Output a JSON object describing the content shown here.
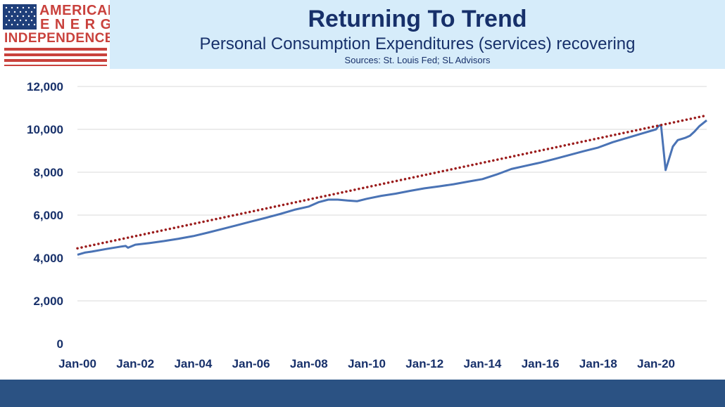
{
  "logo": {
    "line1": "AMERICAN",
    "line2": "ENERGY",
    "line3": "INDEPENDENCE",
    "flag_blue": "#1f3f7a",
    "flag_red": "#c9413c"
  },
  "header": {
    "title": "Returning To Trend",
    "subtitle": "Personal Consumption Expenditures (services) recovering",
    "sources": "Sources: St. Louis Fed; SL Advisors"
  },
  "colors": {
    "header_bg": "#d6ecfa",
    "title": "#17306a",
    "series": "#4a73b5",
    "trend": "#9b1c1c",
    "gridline": "#d9d9d9",
    "footer": "#2b5283"
  },
  "chart_data": {
    "type": "line",
    "title": "",
    "xlabel": "",
    "ylabel": "",
    "ylim": [
      0,
      12000
    ],
    "yticks": [
      0,
      2000,
      4000,
      6000,
      8000,
      10000,
      12000
    ],
    "ytick_labels": [
      "0",
      "2,000",
      "4,000",
      "6,000",
      "8,000",
      "10,000",
      "12,000"
    ],
    "xlim": [
      2000.0,
      2021.75
    ],
    "xticks": [
      2000,
      2002,
      2004,
      2006,
      2008,
      2010,
      2012,
      2014,
      2016,
      2018,
      2020
    ],
    "xtick_labels": [
      "Jan-00",
      "Jan-02",
      "Jan-04",
      "Jan-06",
      "Jan-08",
      "Jan-10",
      "Jan-12",
      "Jan-14",
      "Jan-16",
      "Jan-18",
      "Jan-20"
    ],
    "grid": "horizontal",
    "legend": "none",
    "series": [
      {
        "style": "solid",
        "x": [
          2000.0,
          2000.25,
          2000.5,
          2001.0,
          2001.5,
          2001.67,
          2001.75,
          2002.0,
          2002.5,
          2003.0,
          2003.5,
          2004.0,
          2004.5,
          2005.0,
          2005.5,
          2006.0,
          2006.5,
          2007.0,
          2007.5,
          2008.0,
          2008.33,
          2008.67,
          2009.0,
          2009.33,
          2009.67,
          2010.0,
          2010.5,
          2011.0,
          2011.5,
          2012.0,
          2012.5,
          2013.0,
          2013.5,
          2014.0,
          2014.5,
          2015.0,
          2015.5,
          2016.0,
          2016.5,
          2017.0,
          2017.5,
          2018.0,
          2018.5,
          2019.0,
          2019.5,
          2020.0,
          2020.08,
          2020.17,
          2020.33,
          2020.58,
          2020.75,
          2021.0,
          2021.17,
          2021.33,
          2021.5,
          2021.75
        ],
        "y": [
          4150,
          4250,
          4300,
          4420,
          4530,
          4560,
          4480,
          4620,
          4700,
          4790,
          4900,
          5020,
          5180,
          5350,
          5520,
          5700,
          5870,
          6050,
          6250,
          6400,
          6600,
          6720,
          6720,
          6680,
          6650,
          6760,
          6900,
          7000,
          7130,
          7250,
          7340,
          7440,
          7560,
          7680,
          7900,
          8150,
          8300,
          8450,
          8620,
          8800,
          8980,
          9150,
          9400,
          9600,
          9800,
          10000,
          10150,
          10200,
          8100,
          9200,
          9500,
          9600,
          9700,
          9900,
          10150,
          10420
        ]
      },
      {
        "style": "dotted",
        "x": [
          2000.0,
          2021.75
        ],
        "y": [
          4450,
          10650
        ]
      }
    ]
  }
}
